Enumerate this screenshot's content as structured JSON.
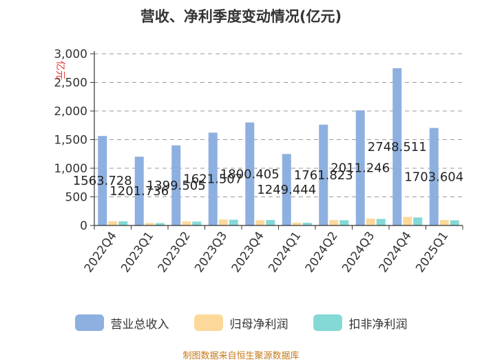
{
  "chart_data": {
    "type": "bar",
    "title": "营收、净利季度变动情况(亿元)",
    "ylabel": "亿元",
    "xlabel": "",
    "ylim": [
      0,
      3000
    ],
    "yticks": [
      "0",
      "500",
      "1,000",
      "1,500",
      "2,000",
      "2,500",
      "3,000"
    ],
    "yticks_values": [
      0,
      500,
      1000,
      1500,
      2000,
      2500,
      3000
    ],
    "grid": true,
    "legend_position": "bottom",
    "categories": [
      "2022Q4",
      "2023Q1",
      "2023Q2",
      "2023Q3",
      "2023Q4",
      "2024Q1",
      "2024Q2",
      "2024Q3",
      "2024Q4",
      "2025Q1"
    ],
    "series": [
      {
        "name": "营业总收入",
        "color": "#8eb0e0",
        "values": [
          1563.728,
          1201.736,
          1399.505,
          1621.507,
          1800.405,
          1249.444,
          1761.823,
          2011.246,
          2748.511,
          1703.604
        ],
        "labels": [
          "1563.728",
          "1201.736",
          "1399.505",
          "1621.507",
          "1800.405",
          "1249.444",
          "1761.823",
          "2011.246",
          "2748.511",
          "1703.604"
        ]
      },
      {
        "name": "归母净利润",
        "color": "#fcd99a",
        "values": [
          75,
          45,
          70,
          105,
          90,
          50,
          95,
          120,
          150,
          95
        ]
      },
      {
        "name": "扣非净利润",
        "color": "#84d8d6",
        "values": [
          72,
          42,
          68,
          100,
          95,
          48,
          92,
          115,
          140,
          90
        ]
      }
    ]
  },
  "footer": {
    "source": "制图数据来自恒生聚源数据库"
  }
}
